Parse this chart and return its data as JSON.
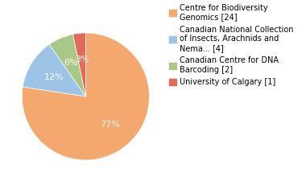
{
  "slices": [
    24,
    4,
    2,
    1
  ],
  "percentages": [
    "77%",
    "12%",
    "6%",
    "3%"
  ],
  "colors": [
    "#F5A86E",
    "#9DC3E6",
    "#A9C888",
    "#E06B5A"
  ],
  "labels": [
    "Centre for Biodiversity\nGenomics [24]",
    "Canadian National Collection\nof Insects, Arachnids and\nNema... [4]",
    "Canadian Centre for DNA\nBarcoding [2]",
    "University of Calgary [1]"
  ],
  "pct_label_colors": [
    "white",
    "white",
    "white",
    "white"
  ],
  "pct_fontsize": 8,
  "legend_fontsize": 7,
  "startangle": 90
}
